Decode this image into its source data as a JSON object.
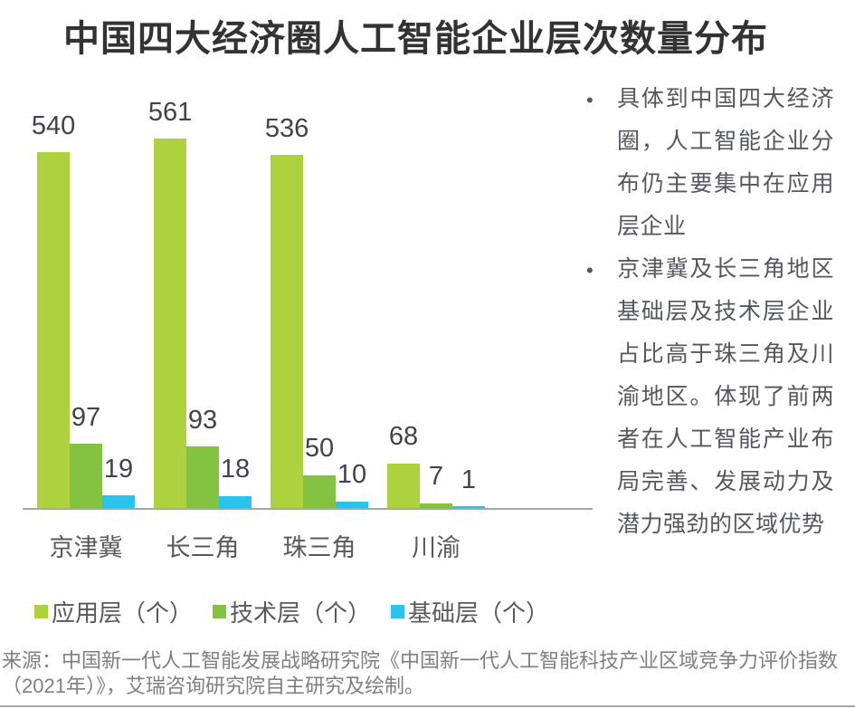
{
  "title": "中国四大经济圈人工智能企业层次数量分布",
  "chart_data": {
    "type": "bar",
    "title": "中国四大经济圈人工智能企业层次数量分布",
    "categories": [
      "京津冀",
      "长三角",
      "珠三角",
      "川渝"
    ],
    "series": [
      {
        "name": "应用层（个）",
        "color": "#aed13e",
        "values": [
          540,
          561,
          536,
          68
        ]
      },
      {
        "name": "技术层（个）",
        "color": "#84c342",
        "values": [
          97,
          93,
          50,
          7
        ]
      },
      {
        "name": "基础层（个）",
        "color": "#29c3ee",
        "values": [
          19,
          18,
          10,
          1
        ]
      }
    ],
    "xlabel": "",
    "ylabel": "",
    "ylim": [
      0,
      561
    ],
    "grid": false,
    "value_labels": true,
    "legend_position": "bottom-left",
    "axis_line_color": "#a6a6a6"
  },
  "notes": {
    "bullets": [
      "具体到中国四大经济圈，人工智能企业分布仍主要集中在应用层企业",
      "京津冀及长三角地区基础层及技术层企业占比高于珠三角及川渝地区。体现了前两者在人工智能产业布局完善、发展动力及潜力强劲的区域优势"
    ]
  },
  "source": "来源：中国新一代人工智能发展战略研究院《中国新一代人工智能科技产业区域竞争力评价指数（2021年）》，艾瑞咨询研究院自主研究及绘制。",
  "colors": {
    "application_layer": "#aed13e",
    "technology_layer": "#84c342",
    "infrastructure_layer": "#29c3ee",
    "axis_line": "#a6a6a6",
    "title_text": "#333333",
    "value_label_text": "#40434e",
    "category_text": "#595959",
    "note_text": "#54575d",
    "source_text": "#7f7f7f"
  }
}
